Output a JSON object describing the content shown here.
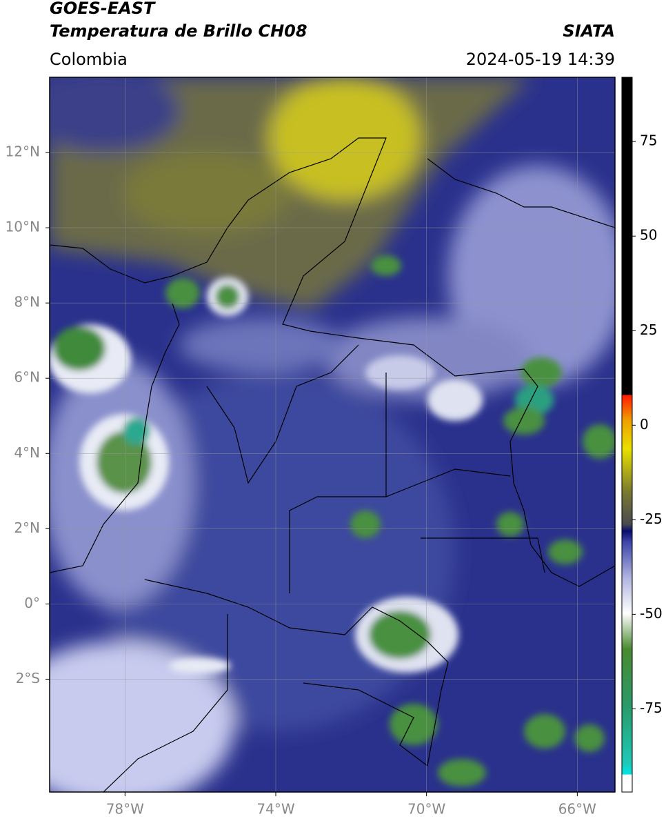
{
  "header": {
    "title_line1": "GOES-EAST",
    "title_line2": "Temperatura de Brillo CH08",
    "source": "SIATA",
    "region": "Colombia",
    "datetime": "2024-05-19 14:39"
  },
  "map": {
    "xlim": [
      -80,
      -65
    ],
    "ylim": [
      -5,
      14
    ],
    "xticks": [
      {
        "value": -78,
        "label": "78°W"
      },
      {
        "value": -74,
        "label": "74°W"
      },
      {
        "value": -70,
        "label": "70°W"
      },
      {
        "value": -66,
        "label": "66°W"
      }
    ],
    "yticks": [
      {
        "value": 12,
        "label": "12°N"
      },
      {
        "value": 10,
        "label": "10°N"
      },
      {
        "value": 8,
        "label": "8°N"
      },
      {
        "value": 6,
        "label": "6°N"
      },
      {
        "value": 4,
        "label": "4°N"
      },
      {
        "value": 2,
        "label": "2°N"
      },
      {
        "value": 0,
        "label": "0°"
      },
      {
        "value": -2,
        "label": "2°S"
      }
    ],
    "grid": true
  },
  "colorbar": {
    "lim": [
      -97,
      92
    ],
    "ticks": [
      75,
      50,
      25,
      0,
      -25,
      -50,
      -75
    ]
  }
}
